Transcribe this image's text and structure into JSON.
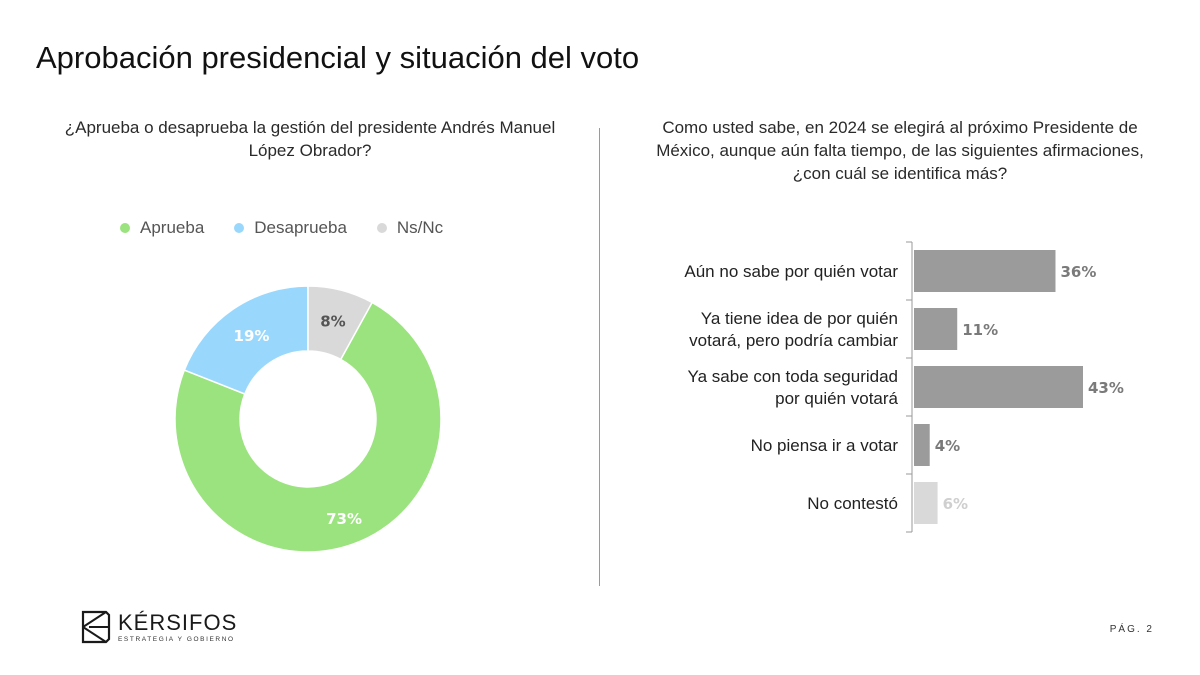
{
  "title": "Aprobación presidencial y situación del voto",
  "left_chart": {
    "question": "¿Aprueba o desaprueba la gestión del presidente Andrés Manuel López Obrador?",
    "legend": [
      {
        "label": "Aprueba",
        "color": "#9be37f"
      },
      {
        "label": "Desaprueba",
        "color": "#99d8fc"
      },
      {
        "label": "Ns/Nc",
        "color": "#d9d9d9"
      }
    ]
  },
  "right_chart": {
    "question": "Como usted sabe, en 2024 se elegirá al próximo Presidente de México, aunque aún falta tiempo, de las siguientes afirmaciones, ¿con cuál se identifica más?"
  },
  "chart_data": [
    {
      "type": "pie",
      "variant": "donut",
      "categories": [
        "Aprueba",
        "Desaprueba",
        "Ns/Nc"
      ],
      "values": [
        73,
        19,
        8
      ],
      "labels": [
        "73%",
        "19%",
        "8%"
      ],
      "colors": [
        "#9be37f",
        "#99d8fc",
        "#d9d9d9"
      ],
      "title": "¿Aprueba o desaprueba la gestión del presidente Andrés Manuel López Obrador?",
      "legend_position": "top"
    },
    {
      "type": "bar",
      "orientation": "horizontal",
      "categories": [
        [
          "Aún no sabe por quién votar"
        ],
        [
          "Ya tiene idea de por quién",
          "votará, pero podría cambiar"
        ],
        [
          "Ya sabe con toda seguridad",
          "por quién votará"
        ],
        [
          "No piensa ir a votar"
        ],
        [
          "No contestó"
        ]
      ],
      "values": [
        36,
        11,
        43,
        4,
        6
      ],
      "labels": [
        "36%",
        "11%",
        "43%",
        "4%",
        "6%"
      ],
      "colors": [
        "#9b9b9b",
        "#9b9b9b",
        "#9b9b9b",
        "#9b9b9b",
        "#d9d9d9"
      ],
      "label_colors": [
        "#7a7a7a",
        "#7a7a7a",
        "#7a7a7a",
        "#7a7a7a",
        "#cfcfcf"
      ],
      "title": "Como usted sabe, en 2024 se elegirá al próximo Presidente de México, aunque aún falta tiempo, de las siguientes afirmaciones, ¿con cuál se identifica más?",
      "xlim": [
        0,
        50
      ],
      "grid": false
    }
  ],
  "footer": {
    "logo_name": "KÉRSIFOS",
    "logo_tagline": "ESTRATEGIA Y GOBIERNO",
    "page": "PÁG. 2"
  }
}
